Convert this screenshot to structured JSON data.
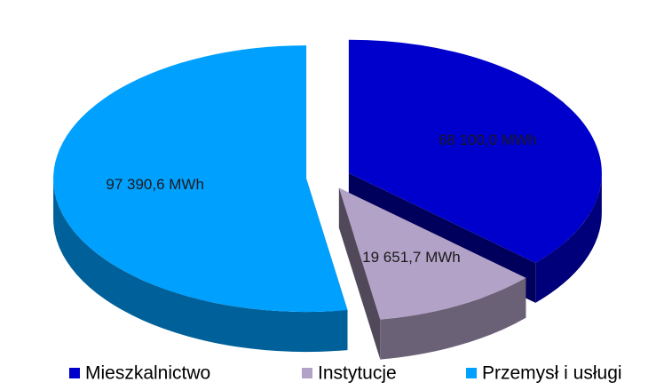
{
  "chart_data": {
    "type": "pie",
    "categories": [
      "Mieszkalnictwo",
      "Instytucje",
      "Przemysł i usługi"
    ],
    "values": [
      68100.0,
      19651.7,
      97390.6
    ],
    "value_labels": [
      "68 100,0 MWh",
      "19 651,7 MWh",
      "97 390,6 MWh"
    ],
    "colors": [
      "#0000cc",
      "#b3a2c7",
      "#00a0ff"
    ],
    "legend": "bottom"
  }
}
